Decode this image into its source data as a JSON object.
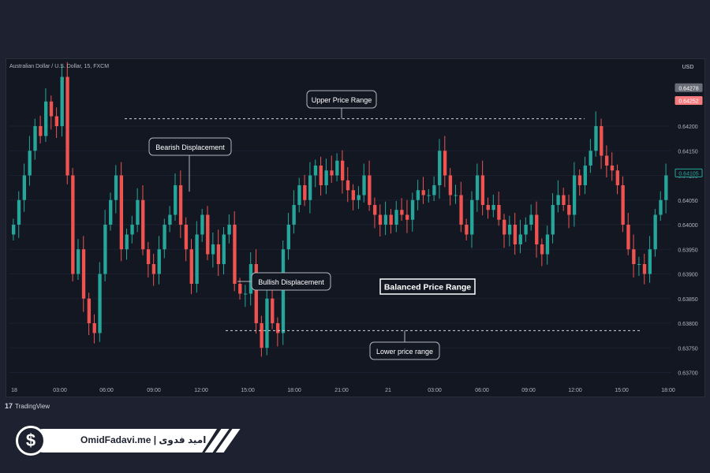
{
  "symbol_label": "Australian Dollar / U.S. Dollar, 15, FXCM",
  "currency": "USD",
  "price_badges": {
    "top": {
      "value": "0.64278",
      "color": "#6a6d78"
    },
    "high": {
      "value": "0.64252",
      "color": "#f77c80"
    },
    "last": {
      "value": "0.64105",
      "color": "#26a69a"
    }
  },
  "price_axis": [
    "0.64200",
    "0.64150",
    "0.64100",
    "0.64050",
    "0.64000",
    "0.63950",
    "0.63900",
    "0.63850",
    "0.63800",
    "0.63750",
    "0.63700"
  ],
  "time_axis": [
    "18",
    "03:00",
    "06:00",
    "09:00",
    "12:00",
    "15:00",
    "18:00",
    "21:00",
    "21",
    "03:00",
    "06:00",
    "09:00",
    "12:00",
    "15:00",
    "18:00"
  ],
  "annotations": {
    "upper": "Upper Price Range",
    "bearish": "Bearish Displacement",
    "bullish": "Bullish Displacement",
    "balanced": "Balanced Price Range",
    "lower": "Lower price range"
  },
  "levels": {
    "upper": 0.64215,
    "lower": 0.63785
  },
  "colors": {
    "up": "#26a69a",
    "down": "#ef5350",
    "background": "#131722",
    "grid": "#1c2030",
    "text": "#b2b5be"
  },
  "footer": {
    "tradingview": "TradingView",
    "brand": "OmidFadavi.me  |  امید فدوی",
    "coin_icon": "dollar-icon"
  },
  "chart_data": {
    "type": "candlestick",
    "ylim": [
      0.6368,
      0.6432
    ],
    "closes": [
      0.64,
      0.6405,
      0.641,
      0.6415,
      0.642,
      0.6418,
      0.6425,
      0.6422,
      0.642,
      0.643,
      0.641,
      0.639,
      0.6395,
      0.6385,
      0.638,
      0.6378,
      0.639,
      0.64,
      0.6405,
      0.641,
      0.6395,
      0.6398,
      0.64,
      0.6405,
      0.6395,
      0.6392,
      0.639,
      0.6395,
      0.64,
      0.6402,
      0.6408,
      0.64,
      0.6395,
      0.6388,
      0.6398,
      0.6402,
      0.6394,
      0.6396,
      0.6392,
      0.6398,
      0.64,
      0.6388,
      0.6386,
      0.6386,
      0.6392,
      0.638,
      0.6375,
      0.6385,
      0.638,
      0.6378,
      0.6395,
      0.64,
      0.6404,
      0.6408,
      0.6405,
      0.641,
      0.6412,
      0.6408,
      0.6411,
      0.641,
      0.6413,
      0.6409,
      0.6407,
      0.6405,
      0.6406,
      0.641,
      0.6404,
      0.6402,
      0.64,
      0.6402,
      0.64,
      0.6403,
      0.6402,
      0.6401,
      0.6405,
      0.6407,
      0.6406,
      0.6406,
      0.6408,
      0.6415,
      0.641,
      0.6406,
      0.6406,
      0.64,
      0.6398,
      0.6405,
      0.641,
      0.6404,
      0.6403,
      0.6404,
      0.6401,
      0.6398,
      0.64,
      0.6396,
      0.6398,
      0.64,
      0.6402,
      0.6396,
      0.6394,
      0.6398,
      0.6404,
      0.6406,
      0.6404,
      0.6402,
      0.641,
      0.6408,
      0.6412,
      0.6415,
      0.642,
      0.6414,
      0.6412,
      0.6411,
      0.6408,
      0.64,
      0.6395,
      0.6392,
      0.6392,
      0.639,
      0.6395,
      0.6402,
      0.6405,
      0.641
    ]
  }
}
